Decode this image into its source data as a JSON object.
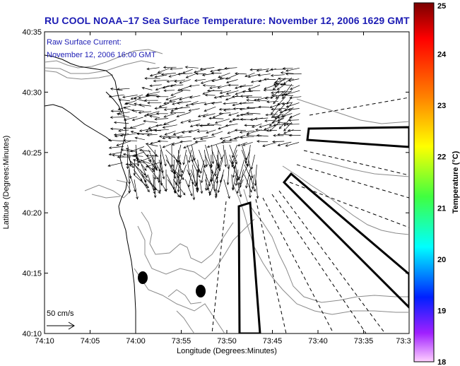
{
  "title": "RU COOL  NOAA–17  Sea Surface Temperature:  November 12, 2006 1629 GMT",
  "annotation": {
    "line1": "Raw Surface Current:",
    "line2": "November 12, 2006 16:00 GMT"
  },
  "scale_label": "50 cm/s",
  "chart_data": {
    "type": "map",
    "title": "RU COOL  NOAA–17  Sea Surface Temperature:  November 12, 2006 1629 GMT",
    "xlabel": "Longitude (Degrees:Minutes)",
    "ylabel": "Latitude (Degrees:Minutes)",
    "x_ticks": [
      "74:10",
      "74:05",
      "74:00",
      "73:55",
      "73:50",
      "73:45",
      "73:40",
      "73:35",
      "73:3"
    ],
    "y_ticks": [
      "40:35",
      "40:30",
      "40:25",
      "40:20",
      "40:15",
      "40:10"
    ],
    "colorbar": {
      "label": "Temperature (°C)",
      "ticks": [
        "25",
        "24",
        "23",
        "22",
        "21",
        "20",
        "19",
        "18"
      ],
      "range": [
        18,
        25
      ]
    },
    "grid": false
  },
  "colors": {
    "title": "#1c1cb4",
    "annotation": "#1c1cb4",
    "contour": "#8a8a8a",
    "land": "#000000"
  }
}
